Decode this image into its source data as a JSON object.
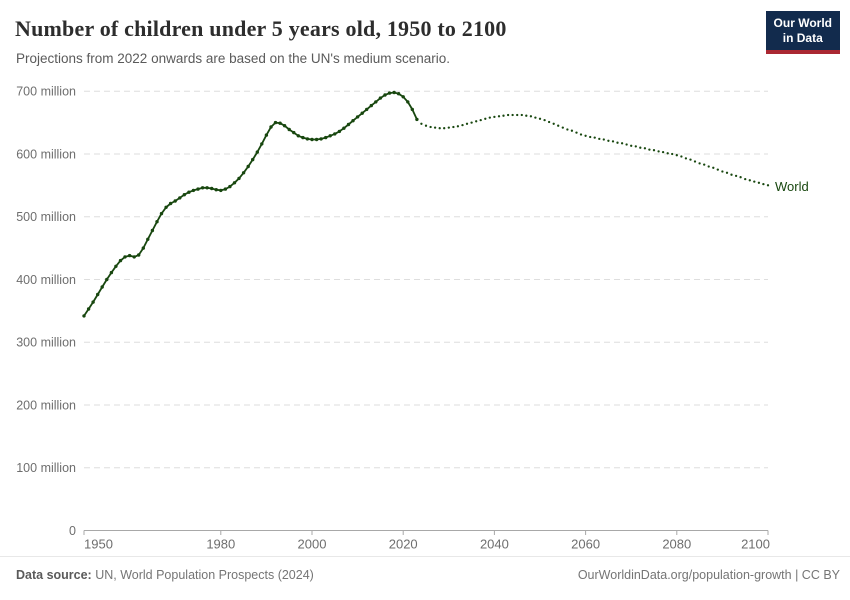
{
  "header": {
    "title": "Number of children under 5 years old, 1950 to 2100",
    "subtitle": "Projections from 2022 onwards are based on the UN's medium scenario.",
    "logo": {
      "line1": "Our World",
      "line2": "in Data"
    }
  },
  "colors": {
    "line": "#18470F",
    "world_label": "#18470F",
    "grid": "#dedede",
    "axis": "#a8a8a8",
    "tick_text": "#6e6e6e",
    "logo_bg": "#122B4D",
    "logo_accent": "#AA2832"
  },
  "chart_data": {
    "type": "line",
    "title": "Number of children under 5 years old, 1950 to 2100",
    "subtitle": "Projections from 2022 onwards are based on the UN's medium scenario.",
    "xlabel": "",
    "ylabel": "",
    "unit": "million",
    "xlim": [
      1950,
      2100
    ],
    "ylim": [
      0,
      700
    ],
    "grid": "horizontal-dashed",
    "legend": "inline-end-label",
    "projection_note_year": 2022,
    "x_start": 1950,
    "x_step": 1,
    "series": [
      {
        "name": "World",
        "solid_through_year": 2023,
        "projection_style": "dotted",
        "values": [
          342,
          353,
          364,
          376,
          388,
          400,
          411,
          421,
          430,
          436,
          438,
          436,
          439,
          450,
          464,
          478,
          492,
          505,
          515,
          521,
          525,
          530,
          535,
          539,
          542,
          544,
          546,
          546,
          545,
          543,
          542,
          544,
          548,
          554,
          561,
          570,
          580,
          591,
          603,
          616,
          630,
          643,
          650,
          649,
          645,
          639,
          634,
          629,
          626,
          624,
          623,
          623,
          624,
          626,
          629,
          632,
          636,
          641,
          647,
          653,
          659,
          665,
          671,
          677,
          683,
          689,
          694,
          697,
          698,
          696,
          691,
          683,
          671,
          655,
          648,
          645,
          643,
          642,
          641,
          641,
          642,
          643,
          644,
          646,
          648,
          650,
          652,
          654,
          656,
          658,
          659,
          660,
          661,
          662,
          662,
          662,
          662,
          661,
          660,
          658,
          656,
          654,
          651,
          648,
          645,
          642,
          639,
          637,
          634,
          631,
          629,
          627,
          626,
          624,
          623,
          621,
          620,
          618,
          617,
          615,
          613,
          612,
          610,
          609,
          607,
          606,
          604,
          603,
          601,
          600,
          598,
          596,
          593,
          591,
          588,
          585,
          583,
          580,
          578,
          575,
          572,
          570,
          567,
          565,
          563,
          560,
          558,
          556,
          554,
          552,
          550
        ]
      }
    ],
    "y_ticks": [
      {
        "v": 0,
        "label": "0"
      },
      {
        "v": 100,
        "label": "100 million"
      },
      {
        "v": 200,
        "label": "200 million"
      },
      {
        "v": 300,
        "label": "300 million"
      },
      {
        "v": 400,
        "label": "400 million"
      },
      {
        "v": 500,
        "label": "500 million"
      },
      {
        "v": 600,
        "label": "600 million"
      },
      {
        "v": 700,
        "label": "700 million"
      }
    ],
    "x_ticks": [
      {
        "v": 1950,
        "label": "1950"
      },
      {
        "v": 1980,
        "label": "1980"
      },
      {
        "v": 2000,
        "label": "2000"
      },
      {
        "v": 2020,
        "label": "2020"
      },
      {
        "v": 2040,
        "label": "2040"
      },
      {
        "v": 2060,
        "label": "2060"
      },
      {
        "v": 2080,
        "label": "2080"
      },
      {
        "v": 2100,
        "label": "2100"
      }
    ]
  },
  "footer": {
    "source_label": "Data source:",
    "source_text": " UN, World Population Prospects (2024)",
    "link_text": "OurWorldinData.org/population-growth | CC BY"
  }
}
